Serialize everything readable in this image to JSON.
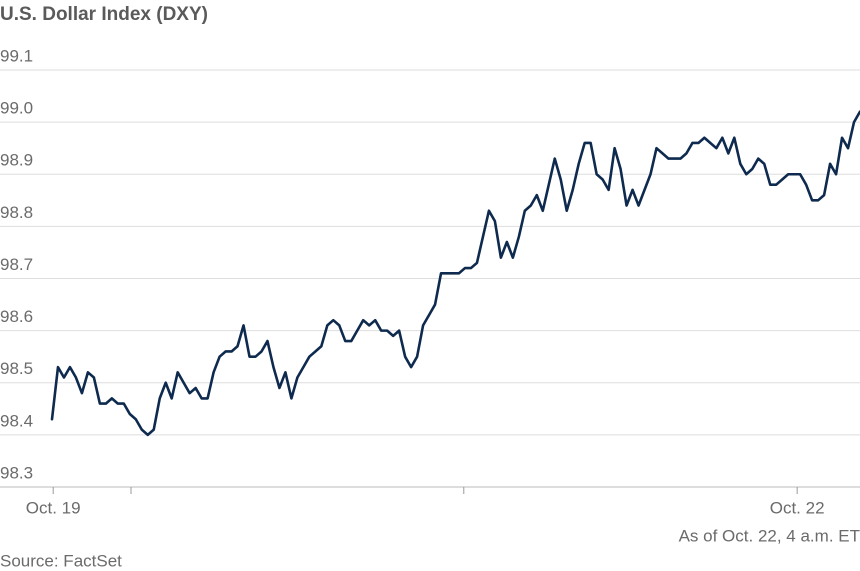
{
  "chart_data": {
    "type": "line",
    "title": "U.S. Dollar Index (DXY)",
    "annotation": "As of Oct. 22, 4 a.m. ET",
    "source": "Source: FactSet",
    "color": "#0e2a4e",
    "grid": true,
    "ylim": [
      98.3,
      99.1
    ],
    "yticks": [
      98.3,
      98.4,
      98.5,
      98.6,
      98.7,
      98.8,
      98.9,
      {
        "value": 99.0,
        "label": "99.0"
      },
      99.1
    ],
    "xlim": [
      0,
      135
    ],
    "xticks": [
      {
        "value": 0.2,
        "label": "Oct. 19"
      },
      {
        "value": 13.2,
        "label": null
      },
      {
        "value": 68.8,
        "label": null
      },
      {
        "value": 124.5,
        "label": "Oct. 22"
      }
    ],
    "values": [
      98.43,
      98.53,
      98.51,
      98.53,
      98.51,
      98.48,
      98.52,
      98.51,
      98.46,
      98.46,
      98.47,
      98.46,
      98.46,
      98.44,
      98.43,
      98.41,
      98.4,
      98.41,
      98.47,
      98.5,
      98.47,
      98.52,
      98.5,
      98.48,
      98.49,
      98.47,
      98.47,
      98.52,
      98.55,
      98.56,
      98.56,
      98.57,
      98.61,
      98.55,
      98.55,
      98.56,
      98.58,
      98.53,
      98.49,
      98.52,
      98.47,
      98.51,
      98.53,
      98.55,
      98.56,
      98.57,
      98.61,
      98.62,
      98.61,
      98.58,
      98.58,
      98.6,
      98.62,
      98.61,
      98.62,
      98.6,
      98.6,
      98.59,
      98.6,
      98.55,
      98.53,
      98.55,
      98.61,
      98.63,
      98.65,
      98.71,
      98.71,
      98.71,
      98.71,
      98.72,
      98.72,
      98.73,
      98.78,
      98.83,
      98.81,
      98.74,
      98.77,
      98.74,
      98.78,
      98.83,
      98.84,
      98.86,
      98.83,
      98.88,
      98.93,
      98.89,
      98.83,
      98.87,
      98.92,
      98.96,
      98.96,
      98.9,
      98.89,
      98.87,
      98.95,
      98.91,
      98.84,
      98.87,
      98.84,
      98.87,
      98.9,
      98.95,
      98.94,
      98.93,
      98.93,
      98.93,
      98.94,
      98.96,
      98.96,
      98.97,
      98.96,
      98.95,
      98.97,
      98.94,
      98.97,
      98.92,
      98.9,
      98.91,
      98.93,
      98.92,
      98.88,
      98.88,
      98.89,
      98.9,
      98.9,
      98.9,
      98.88,
      98.85,
      98.85,
      98.86,
      98.92,
      98.9,
      98.97,
      98.95,
      99.0,
      99.02
    ]
  }
}
